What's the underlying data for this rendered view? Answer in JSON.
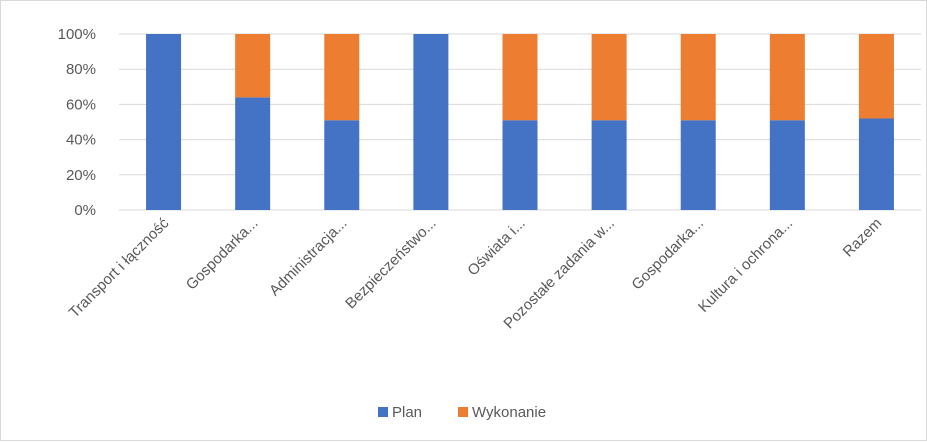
{
  "chart_data": {
    "type": "bar",
    "stacked": true,
    "percent_stacked": true,
    "categories": [
      "Transport i łączność",
      "Gospodarka...",
      "Administracja...",
      "Bezpieczeństwo...",
      "Oświata i...",
      "Pozostałe zadania w...",
      "Gospodarka...",
      "Kultura i ochrona...",
      "Razem"
    ],
    "series": [
      {
        "name": "Plan",
        "color": "#4472c4",
        "values": [
          100,
          64,
          51,
          100,
          51,
          51,
          51,
          51,
          52
        ]
      },
      {
        "name": "Wykonanie",
        "color": "#ed7d31",
        "values": [
          0,
          36,
          49,
          0,
          49,
          49,
          49,
          49,
          48
        ]
      }
    ],
    "yticks": [
      "0%",
      "20%",
      "40%",
      "60%",
      "80%",
      "100%"
    ],
    "ylim": [
      0,
      100
    ],
    "grid": true,
    "legend_position": "bottom"
  }
}
